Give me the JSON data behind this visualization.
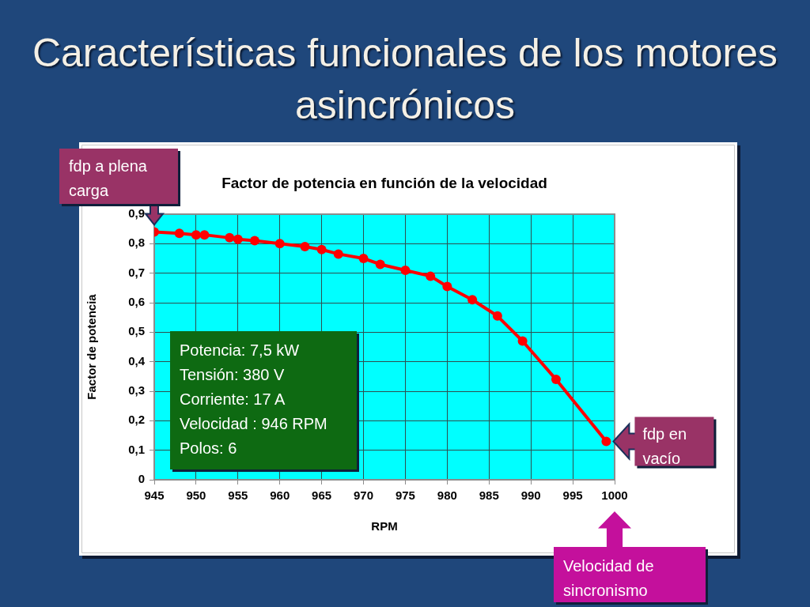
{
  "chart_data": {
    "type": "line",
    "title": "Características funcionales de los motores asincrónicos",
    "subtitle": "Factor de potencia en función de la velocidad",
    "xlabel": "RPM",
    "ylabel": "Factor de potencia",
    "x": [
      945,
      948,
      950,
      951,
      954,
      955,
      957,
      960,
      963,
      965,
      967,
      970,
      972,
      975,
      978,
      980,
      983,
      986,
      989,
      993,
      999
    ],
    "values": [
      0.84,
      0.835,
      0.83,
      0.83,
      0.82,
      0.815,
      0.81,
      0.8,
      0.79,
      0.78,
      0.765,
      0.75,
      0.73,
      0.71,
      0.69,
      0.655,
      0.61,
      0.555,
      0.47,
      0.34,
      0.13
    ],
    "color": "#ff0000",
    "xlim": [
      945,
      1000
    ],
    "xticks": [
      945,
      950,
      955,
      960,
      965,
      970,
      975,
      980,
      985,
      990,
      995,
      1000
    ],
    "ylim": [
      0,
      0.9
    ],
    "yticks": [
      0,
      {
        "value": 0.1,
        "label": "0,1"
      },
      {
        "value": 0.2,
        "label": "0,2"
      },
      {
        "value": 0.3,
        "label": "0,3"
      },
      {
        "value": 0.4,
        "label": "0,4"
      },
      {
        "value": 0.5,
        "label": "0,5"
      },
      {
        "value": 0.6,
        "label": "0,6"
      },
      {
        "value": 0.7,
        "label": "0,7"
      },
      {
        "value": 0.8,
        "label": "0,8"
      },
      {
        "value": 0.9,
        "label": "0,9"
      }
    ],
    "grid": true,
    "legend": false,
    "marker": "circle",
    "line_style": "solid",
    "annotations": [
      {
        "text": "fdp a plena carga",
        "x": 945,
        "y": 0.84
      },
      {
        "text": "fdp en vacío",
        "x": 999,
        "y": 0.13
      },
      "Velocidad de sincronismo",
      "Potencia: 7,5 kW\nTensión: 380 V\nCorriente: 17 A\nVelocidad : 946 RPM\nPolos: 6"
    ]
  }
}
